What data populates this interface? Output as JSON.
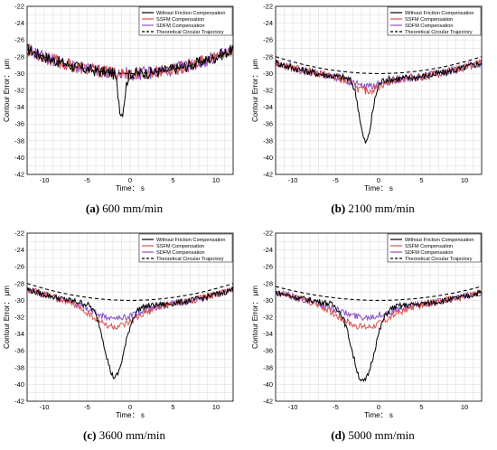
{
  "colors": {
    "without": "#000000",
    "ssfm": "#d9534f",
    "sdfm": "#8a4fc8",
    "theoretical": "#000000",
    "grid": "#d9d9d9"
  },
  "legend": [
    {
      "label": "Without Friction Compensation",
      "key": "without",
      "dash": false
    },
    {
      "label": "SSFM Compensation",
      "key": "ssfm",
      "dash": false
    },
    {
      "label": "SDFM Compensation",
      "key": "sdfm",
      "dash": false
    },
    {
      "label": "Theoretical Circular Trajectory",
      "key": "theoretical",
      "dash": true
    }
  ],
  "axes": {
    "xlabel": "Time： s",
    "ylabel": "Contour Error： μm",
    "xlim": [
      -12,
      12
    ],
    "ylim": [
      -42,
      -22
    ],
    "xticks": [
      -10,
      -5,
      0,
      5,
      10
    ],
    "yticks": [
      -22,
      -24,
      -26,
      -28,
      -30,
      -32,
      -34,
      -36,
      -38,
      -40,
      -42
    ]
  },
  "chart_data": [
    {
      "type": "line",
      "caption_letter": "(a)",
      "caption_text": "600 mm/min",
      "theoretical": {
        "a": -30.0,
        "k": 0.02
      },
      "noise": 1.0,
      "dip": {
        "center": -1.0,
        "depth": -4.8,
        "width": 0.5
      },
      "ssfm_dip": 0.0,
      "sdfm_dip": 0.0
    },
    {
      "type": "line",
      "caption_letter": "(b)",
      "caption_text": "2100 mm/min",
      "theoretical": {
        "a": -30.0,
        "k": 0.014
      },
      "noise": 0.6,
      "dip": {
        "center": -1.5,
        "depth": -7.5,
        "width": 1.0
      },
      "ssfm_dip": -1.4,
      "sdfm_dip": -0.9
    },
    {
      "type": "line",
      "caption_letter": "(c)",
      "caption_text": "3600 mm/min",
      "theoretical": {
        "a": -30.0,
        "k": 0.014
      },
      "noise": 0.5,
      "dip": {
        "center": -1.8,
        "depth": -8.5,
        "width": 1.6
      },
      "ssfm_dip": -2.5,
      "sdfm_dip": -1.5
    },
    {
      "type": "line",
      "caption_letter": "(d)",
      "caption_text": "5000 mm/min",
      "theoretical": {
        "a": -30.0,
        "k": 0.0115
      },
      "noise": 0.5,
      "dip": {
        "center": -1.8,
        "depth": -9.0,
        "width": 1.8
      },
      "ssfm_dip": -2.5,
      "sdfm_dip": -1.3
    }
  ]
}
